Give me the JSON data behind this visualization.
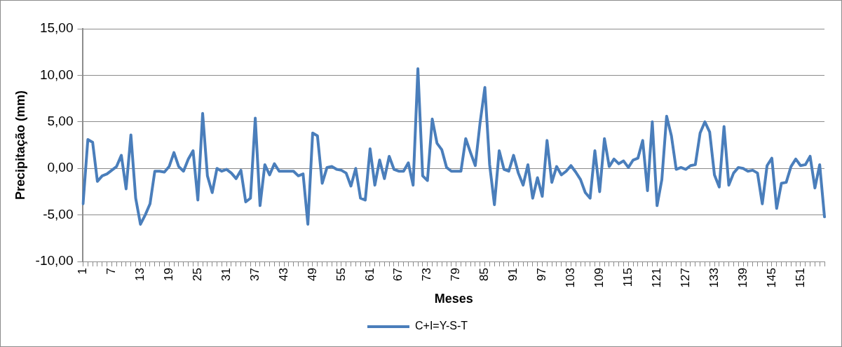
{
  "chart_data": {
    "type": "line",
    "xlabel": "Meses",
    "ylabel": "Precipitação (mm)",
    "categories": [
      "1",
      null,
      null,
      null,
      null,
      null,
      "7",
      null,
      null,
      null,
      null,
      null,
      "13",
      null,
      null,
      null,
      null,
      null,
      "19",
      null,
      null,
      null,
      null,
      null,
      "25",
      null,
      null,
      null,
      null,
      null,
      "31",
      null,
      null,
      null,
      null,
      null,
      "37",
      null,
      null,
      null,
      null,
      null,
      "43",
      null,
      null,
      null,
      null,
      null,
      "49",
      null,
      null,
      null,
      null,
      null,
      "55",
      null,
      null,
      null,
      null,
      null,
      "61",
      null,
      null,
      null,
      null,
      null,
      "67",
      null,
      null,
      null,
      null,
      null,
      "73",
      null,
      null,
      null,
      null,
      null,
      "79",
      null,
      null,
      null,
      null,
      null,
      "85",
      null,
      null,
      null,
      null,
      null,
      "91",
      null,
      null,
      null,
      null,
      null,
      "97",
      null,
      null,
      null,
      null,
      null,
      "103",
      null,
      null,
      null,
      null,
      null,
      "109",
      null,
      null,
      null,
      null,
      null,
      "115",
      null,
      null,
      null,
      null,
      null,
      "121",
      null,
      null,
      null,
      null,
      null,
      "127",
      null,
      null,
      null,
      null,
      null,
      "133",
      null,
      null,
      null,
      null,
      null,
      "139",
      null,
      null,
      null,
      null,
      null,
      "145",
      null,
      null,
      null,
      null,
      null,
      "151",
      null,
      null,
      null,
      null,
      null
    ],
    "series": [
      {
        "name": "C+I=Y-S-T",
        "color": "#4a7ebb",
        "values": [
          -3.8,
          3.1,
          2.8,
          -1.4,
          -0.8,
          -0.6,
          -0.2,
          0.2,
          1.4,
          -2.2,
          3.6,
          -3.2,
          -6.0,
          -5.0,
          -3.8,
          -0.3,
          -0.3,
          -0.4,
          0.2,
          1.7,
          0.2,
          -0.3,
          1.0,
          1.9,
          -3.4,
          5.9,
          -0.8,
          -2.6,
          0.0,
          -0.3,
          -0.1,
          -0.5,
          -1.1,
          -0.2,
          -3.6,
          -3.2,
          5.4,
          -4.0,
          0.4,
          -0.7,
          0.5,
          -0.3,
          -0.3,
          -0.3,
          -0.3,
          -0.8,
          -0.6,
          -6.0,
          3.8,
          3.5,
          -1.6,
          0.1,
          0.2,
          -0.1,
          -0.2,
          -0.5,
          -1.9,
          0.0,
          -3.2,
          -3.4,
          2.1,
          -1.8,
          0.9,
          -1.1,
          1.3,
          -0.1,
          -0.3,
          -0.3,
          0.6,
          -1.8,
          10.7,
          -0.8,
          -1.3,
          5.3,
          2.7,
          2.0,
          0.1,
          -0.3,
          -0.3,
          -0.3,
          3.2,
          1.7,
          0.3,
          4.9,
          8.7,
          0.4,
          -3.9,
          1.9,
          -0.1,
          -0.3,
          1.4,
          -0.5,
          -1.8,
          0.4,
          -3.2,
          -1.0,
          -3.0,
          3.0,
          -1.5,
          0.2,
          -0.7,
          -0.3,
          0.3,
          -0.4,
          -1.2,
          -2.6,
          -3.2,
          1.9,
          -2.5,
          3.2,
          0.2,
          1.0,
          0.5,
          0.8,
          0.1,
          0.9,
          1.1,
          3.0,
          -2.4,
          5.0,
          -4.0,
          -1.2,
          5.6,
          3.5,
          -0.1,
          0.1,
          -0.1,
          0.3,
          0.4,
          3.8,
          5.0,
          3.9,
          -0.7,
          -2.0,
          4.5,
          -1.8,
          -0.5,
          0.1,
          0.0,
          -0.3,
          -0.2,
          -0.5,
          -3.8,
          0.3,
          1.1,
          -4.3,
          -1.6,
          -1.5,
          0.2,
          1.0,
          0.3,
          0.4,
          1.3,
          -2.1,
          0.4,
          -5.2
        ]
      }
    ],
    "ylim": [
      -10,
      15
    ],
    "yticks": [
      {
        "value": -10,
        "label": "-10,00"
      },
      {
        "value": -5,
        "label": "-5,00"
      },
      {
        "value": 0,
        "label": "0,00"
      },
      {
        "value": 5,
        "label": "5,00"
      },
      {
        "value": 10,
        "label": "10,00"
      },
      {
        "value": 15,
        "label": "15,00"
      }
    ],
    "grid": "y",
    "legend": "bottom",
    "marker": "none",
    "line_style": "solid"
  }
}
